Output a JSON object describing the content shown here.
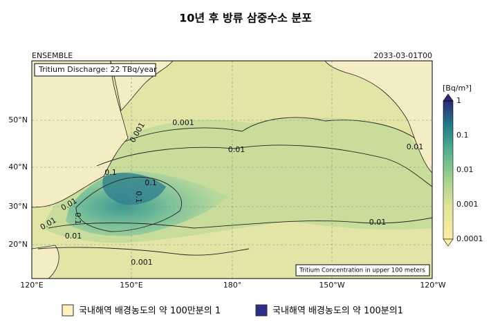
{
  "header": {
    "title": "10년 후 방류 삼중수소 분포"
  },
  "map": {
    "left_label": "ENSEMBLE",
    "right_label": "2033-03-01T00",
    "discharge_box": "Tritium Discharge: 22 TBq/year",
    "footer_box": "Tritium Concentration in upper 100 meters",
    "lat_labels": [
      "50°N",
      "40°N",
      "30°N",
      "20°N"
    ],
    "lon_labels": [
      "120°E",
      "150°E",
      "180°",
      "150°W",
      "120°W"
    ],
    "contour_labels": [
      "0.001",
      "0.001",
      "0.01",
      "0.1",
      "0.1",
      "0.01",
      "0.01",
      "0.01",
      "0.01",
      "0.01",
      "0.001",
      "0.1",
      "0.1"
    ],
    "colorbar": {
      "unit": "[Bq/m³]",
      "ticks": [
        "1",
        "0.1",
        "0.01",
        "0.001",
        "0.0001"
      ]
    }
  },
  "legend": [
    {
      "label": "국내해역 배경농도의 약 100만분의 1"
    },
    {
      "label": "국내해역 배경농도의 약 100분의1"
    }
  ]
}
